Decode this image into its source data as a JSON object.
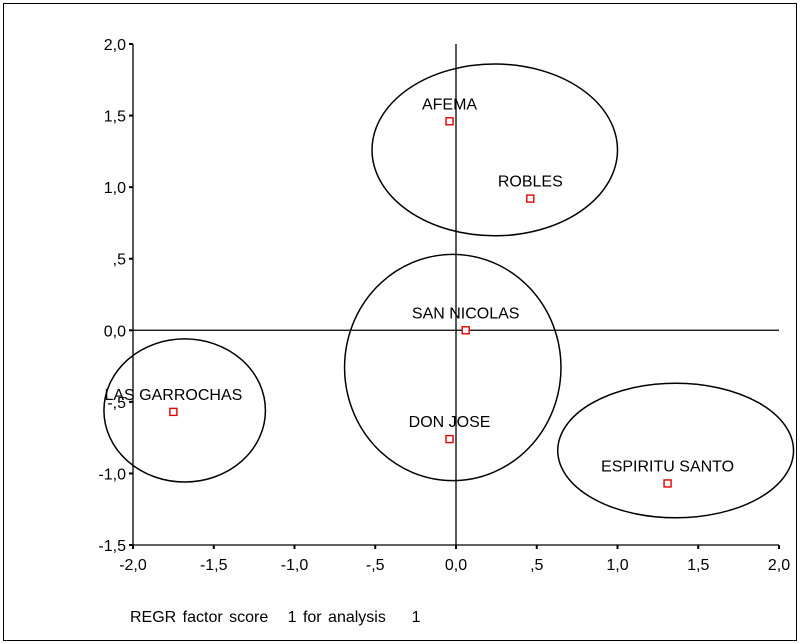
{
  "chart_data": {
    "type": "scatter",
    "title": "",
    "xlabel": "REGR factor score   1 for analysis    1",
    "ylabel": "",
    "xlim": [
      -2.0,
      2.0
    ],
    "ylim": [
      -1.5,
      2.0
    ],
    "x_ticks": [
      -2.0,
      -1.5,
      -1.0,
      -0.5,
      0.0,
      0.5,
      1.0,
      1.5,
      2.0
    ],
    "x_tick_labels": [
      "-2,0",
      "-1,5",
      "-1,0",
      "-,5",
      "0,0",
      ",5",
      "1,0",
      "1,5",
      "2,0"
    ],
    "y_ticks": [
      2.0,
      1.5,
      1.0,
      0.5,
      0.0,
      -0.5,
      -1.0,
      -1.5
    ],
    "y_tick_labels": [
      "2,0",
      "1,5",
      "1,0",
      ",5",
      "0,0",
      "-,5",
      "-1,0",
      "-1,5"
    ],
    "reference_lines": {
      "x": 0.0,
      "y": 0.0
    },
    "grid": false,
    "marker_color": "#e00000",
    "points": [
      {
        "label": "AFEMA",
        "x": -0.04,
        "y": 1.46
      },
      {
        "label": "ROBLES",
        "x": 0.46,
        "y": 0.92
      },
      {
        "label": "SAN NICOLAS",
        "x": 0.06,
        "y": 0.0
      },
      {
        "label": "LAS GARROCHAS",
        "x": -1.75,
        "y": -0.57
      },
      {
        "label": "DON JOSE",
        "x": -0.04,
        "y": -0.76
      },
      {
        "label": "ESPIRITU SANTO",
        "x": 1.31,
        "y": -1.07
      }
    ],
    "groups": [
      {
        "cx": 0.24,
        "cy": 1.26,
        "rx": 0.76,
        "ry": 0.6
      },
      {
        "cx": -0.02,
        "cy": -0.26,
        "rx": 0.67,
        "ry": 0.79
      },
      {
        "cx": -1.68,
        "cy": -0.56,
        "rx": 0.5,
        "ry": 0.5
      },
      {
        "cx": 1.36,
        "cy": -0.84,
        "rx": 0.73,
        "ry": 0.47
      }
    ]
  }
}
